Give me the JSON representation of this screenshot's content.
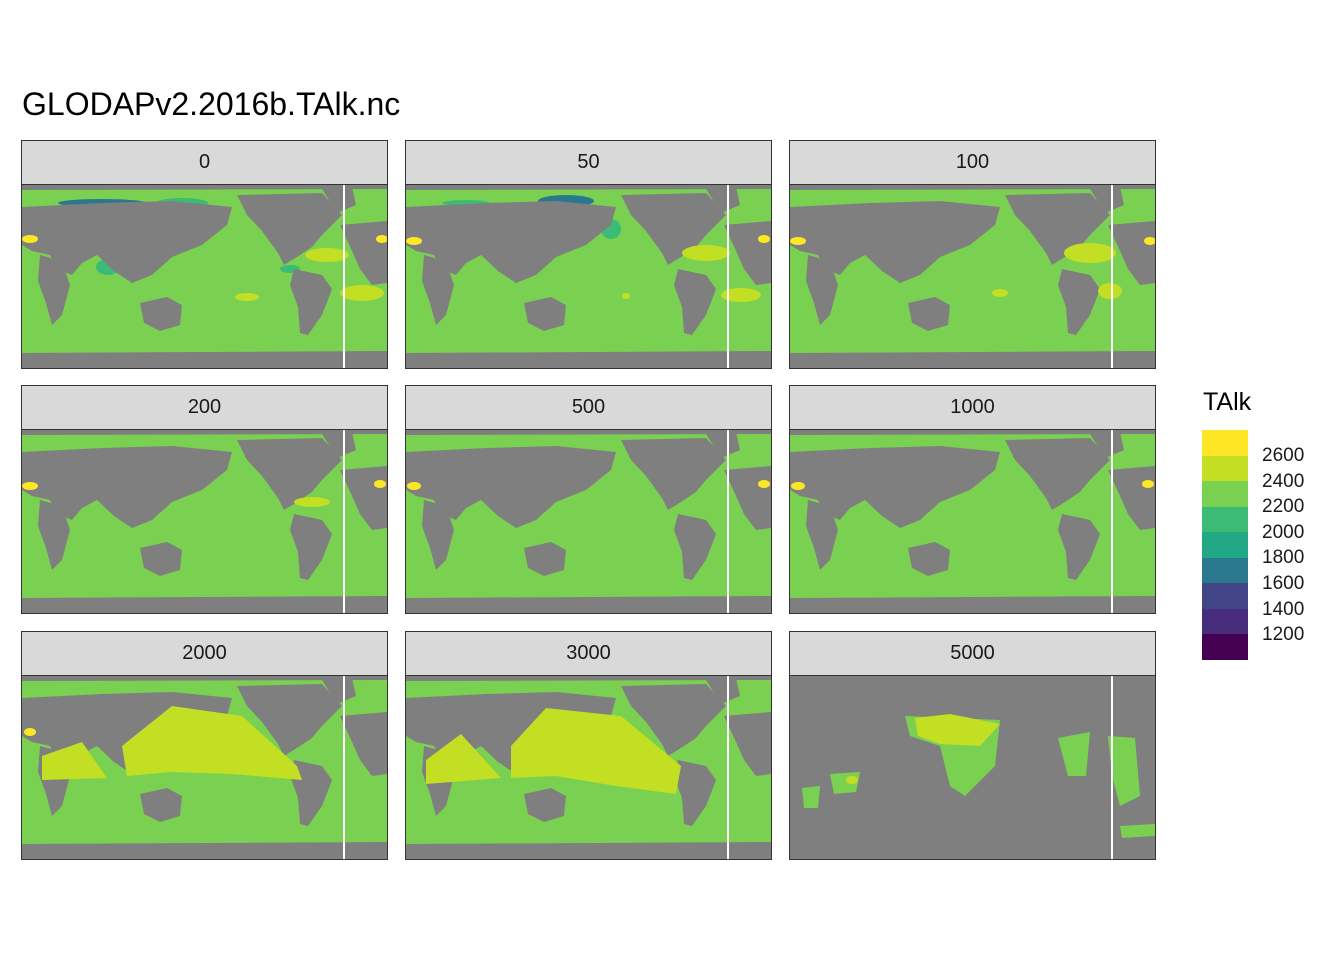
{
  "title": "GLODAPv2.2016b.TAlk.nc",
  "legend": {
    "title": "TAlk",
    "ticks": [
      "2600",
      "2400",
      "2200",
      "2000",
      "1800",
      "1600",
      "1400",
      "1200"
    ],
    "colors": [
      "#fde725",
      "#c2df23",
      "#7ad151",
      "#3bbb75",
      "#22a884",
      "#2a788e",
      "#414487",
      "#472d7b",
      "#440154"
    ]
  },
  "colors": {
    "land": "#7f7f7f",
    "ocean": "#7ad151",
    "high": "#c2df23",
    "veryhigh": "#fde725",
    "low": "#3bbb75",
    "verylow": "#2a788e",
    "strip": "#d9d9d9"
  },
  "chart_data": {
    "type": "heatmap",
    "title": "GLODAPv2.2016b.TAlk.nc",
    "variable": "TAlk",
    "facet_by": "depth",
    "facets": [
      "0",
      "50",
      "100",
      "200",
      "500",
      "1000",
      "2000",
      "3000",
      "5000"
    ],
    "legend_breaks": [
      1200,
      1400,
      1600,
      1800,
      2000,
      2200,
      2400,
      2600
    ],
    "color_scale": "viridis",
    "dominant_ocean_value_range": [
      2200,
      2400
    ],
    "high_regions": {
      "0": [
        "North Atlantic subtropics",
        "South Atlantic subtropics",
        "Mediterranean"
      ],
      "50": [
        "North Atlantic subtropics",
        "South Atlantic subtropics",
        "Mediterranean"
      ],
      "100": [
        "North Atlantic subtropics",
        "South Atlantic subtropics",
        "Mediterranean"
      ],
      "200": [
        "North Atlantic subtropics",
        "Mediterranean"
      ],
      "500": [
        "Mediterranean"
      ],
      "1000": [
        "Mediterranean"
      ],
      "2000": [
        "North Pacific",
        "North Indian",
        "Mediterranean"
      ],
      "3000": [
        "North Pacific",
        "North Indian"
      ],
      "5000": [
        "North Pacific",
        "Indian"
      ]
    },
    "low_regions": {
      "0": [
        "Arctic shelves",
        "Bay of Bengal",
        "Sea of Okhotsk",
        "Bering Sea"
      ],
      "50": [
        "Arctic shelves",
        "Sea of Okhotsk"
      ]
    }
  }
}
